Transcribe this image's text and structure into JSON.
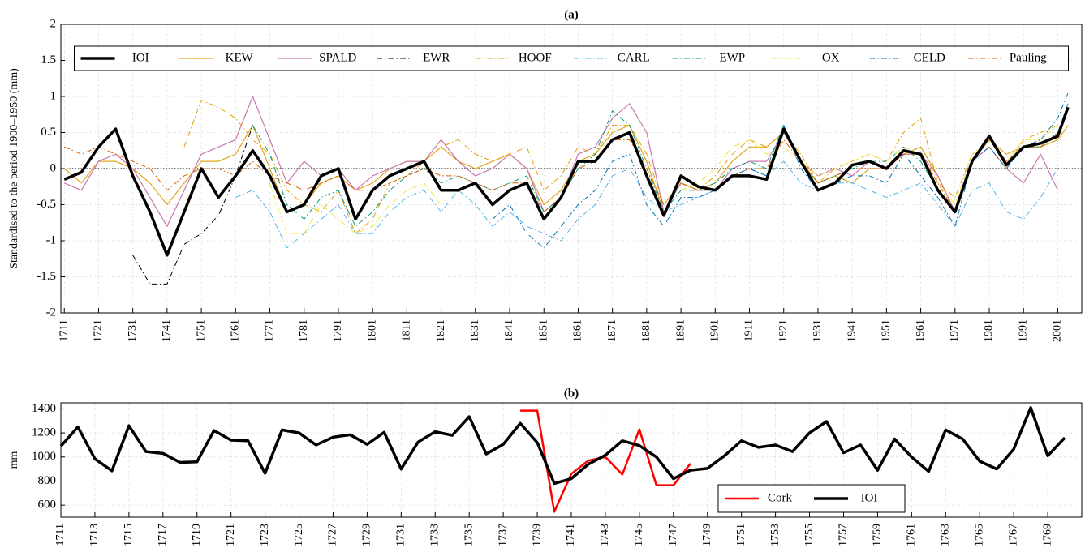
{
  "chart_data": [
    {
      "type": "line",
      "title": "(a)",
      "ylabel": "Standardised to the period 1900–1950 (mm)",
      "xlim": [
        1710,
        2008
      ],
      "ylim": [
        -2,
        2
      ],
      "xticks": [
        1711,
        1721,
        1731,
        1741,
        1751,
        1761,
        1771,
        1781,
        1791,
        1801,
        1811,
        1821,
        1831,
        1841,
        1851,
        1861,
        1871,
        1881,
        1891,
        1901,
        1911,
        1921,
        1931,
        1941,
        1951,
        1961,
        1971,
        1981,
        1991,
        2001
      ],
      "yticks": [
        -2,
        -1.5,
        -1,
        -0.5,
        0,
        0.5,
        1,
        1.5,
        2
      ],
      "grid": true,
      "reference_line": 0,
      "legend": "upper center",
      "x": [
        1711,
        1716,
        1721,
        1726,
        1731,
        1736,
        1741,
        1746,
        1751,
        1756,
        1761,
        1766,
        1771,
        1776,
        1781,
        1786,
        1791,
        1796,
        1801,
        1806,
        1811,
        1816,
        1821,
        1826,
        1831,
        1836,
        1841,
        1846,
        1851,
        1856,
        1861,
        1866,
        1871,
        1876,
        1881,
        1886,
        1891,
        1896,
        1901,
        1906,
        1911,
        1916,
        1921,
        1926,
        1931,
        1936,
        1941,
        1946,
        1951,
        1956,
        1961,
        1966,
        1971,
        1976,
        1981,
        1986,
        1991,
        1996,
        2001,
        2004
      ],
      "series": [
        {
          "name": "IOI",
          "color": "#000000",
          "dash": "-",
          "linewidth": 3.5,
          "values": [
            -0.15,
            -0.05,
            0.3,
            0.55,
            -0.1,
            -0.6,
            -1.2,
            -0.6,
            0.0,
            -0.4,
            -0.1,
            0.25,
            -0.1,
            -0.6,
            -0.5,
            -0.1,
            0.0,
            -0.7,
            -0.3,
            -0.1,
            0.0,
            0.1,
            -0.3,
            -0.3,
            -0.2,
            -0.5,
            -0.3,
            -0.2,
            -0.7,
            -0.4,
            0.1,
            0.1,
            0.4,
            0.5,
            -0.1,
            -0.65,
            -0.1,
            -0.25,
            -0.3,
            -0.1,
            -0.1,
            -0.15,
            0.55,
            0.1,
            -0.3,
            -0.2,
            0.05,
            0.1,
            0.0,
            0.25,
            0.2,
            -0.3,
            -0.6,
            0.1,
            0.45,
            0.05,
            0.3,
            0.35,
            0.45,
            0.85
          ]
        },
        {
          "name": "KEW",
          "color": "#e3a51c",
          "dash": "-",
          "linewidth": 1.2,
          "values": [
            0,
            -0.2,
            0.1,
            0.1,
            0,
            -0.2,
            -0.5,
            -0.2,
            0.1,
            0.1,
            0.2,
            0.6,
            0.0,
            -0.6,
            -0.5,
            -0.2,
            -0.1,
            -0.3,
            -0.2,
            0.0,
            0.1,
            0.1,
            0.3,
            0.1,
            0.0,
            0.1,
            0.2,
            0.0,
            -0.5,
            -0.3,
            0.1,
            0.2,
            0.5,
            0.6,
            0.1,
            -0.6,
            -0.2,
            -0.3,
            -0.2,
            0.1,
            0.3,
            0.3,
            0.5,
            0.1,
            -0.2,
            -0.1,
            -0.2,
            0.0,
            0.0,
            0.2,
            0.3,
            -0.1,
            -0.6,
            0.1,
            0.4,
            0.2,
            0.3,
            0.3,
            0.4,
            0.6
          ]
        },
        {
          "name": "SPALD",
          "color": "#c978b0",
          "dash": "-",
          "linewidth": 1.2,
          "values": [
            -0.2,
            -0.3,
            0.1,
            0.2,
            0.0,
            -0.4,
            -0.8,
            -0.3,
            0.2,
            0.3,
            0.4,
            1.0,
            0.4,
            -0.2,
            0.1,
            -0.1,
            0.0,
            -0.3,
            -0.1,
            0.0,
            0.1,
            0.1,
            0.4,
            0.1,
            -0.1,
            0.0,
            0.2,
            0.0,
            -0.6,
            -0.4,
            0.2,
            0.3,
            0.7,
            0.9,
            0.5,
            -0.6,
            -0.2,
            -0.3,
            -0.3,
            0.0,
            0.1,
            0.1,
            0.5,
            0.1,
            -0.1,
            0.0,
            -0.1,
            0.1,
            0.0,
            0.2,
            0.2,
            -0.1,
            -0.6,
            0.1,
            0.3,
            0.0,
            -0.2,
            0.2,
            -0.3,
            null
          ]
        },
        {
          "name": "EWR",
          "color": "#000000",
          "dash": "-.",
          "linewidth": 1,
          "values": [
            null,
            null,
            null,
            null,
            -1.2,
            -1.6,
            -1.6,
            -1.05,
            -0.9,
            -0.65,
            -0.1,
            0.6,
            null,
            null,
            null,
            null,
            null,
            null,
            null,
            null,
            null,
            null,
            null,
            null,
            null,
            null,
            null,
            null,
            null,
            null,
            null,
            null,
            null,
            null,
            null,
            null,
            null,
            null,
            null,
            null,
            null,
            null,
            null,
            null,
            null,
            null,
            null,
            null,
            null,
            null,
            null,
            null,
            null,
            null,
            null,
            null,
            null,
            null,
            null,
            null
          ]
        },
        {
          "name": "HOOF",
          "color": "#e69f00",
          "dash": "-.",
          "linewidth": 1,
          "values": [
            null,
            null,
            null,
            null,
            null,
            null,
            null,
            0.3,
            0.95,
            0.85,
            0.7,
            0.4,
            0.2,
            -0.3,
            -0.5,
            -0.6,
            -0.3,
            -0.9,
            -0.7,
            -0.2,
            -0.1,
            0.1,
            0.3,
            0.4,
            0.2,
            0.1,
            0.2,
            0.3,
            -0.3,
            -0.1,
            0.3,
            0.2,
            0.6,
            0.6,
            0.2,
            -0.5,
            -0.2,
            -0.3,
            -0.1,
            0.2,
            0.4,
            0.3,
            0.5,
            0.2,
            -0.2,
            0.0,
            0.1,
            0.2,
            0.1,
            0.5,
            0.7,
            -0.2,
            -0.4,
            0.2,
            0.3,
            0.0,
            0.4,
            0.5,
            0.6,
            null
          ]
        },
        {
          "name": "CARL",
          "color": "#56b4e9",
          "dash": "-.",
          "linewidth": 1,
          "values": [
            null,
            null,
            null,
            null,
            null,
            null,
            null,
            null,
            null,
            null,
            -0.4,
            -0.3,
            -0.6,
            -1.1,
            -0.9,
            -0.7,
            -0.5,
            -0.9,
            -0.9,
            -0.6,
            -0.4,
            -0.3,
            -0.6,
            -0.3,
            -0.5,
            -0.8,
            -0.6,
            -0.8,
            -0.9,
            -1.0,
            -0.7,
            -0.5,
            -0.1,
            0.0,
            -0.4,
            -0.6,
            -0.5,
            -0.4,
            -0.3,
            -0.1,
            0.0,
            -0.1,
            0.1,
            -0.2,
            -0.3,
            -0.2,
            -0.2,
            -0.3,
            -0.4,
            -0.3,
            -0.2,
            -0.5,
            -0.8,
            -0.3,
            -0.2,
            -0.6,
            -0.7,
            -0.4,
            0.0,
            null
          ]
        },
        {
          "name": "EWP",
          "color": "#009e73",
          "dash": "-.",
          "linewidth": 1,
          "values": [
            null,
            null,
            null,
            null,
            null,
            null,
            null,
            null,
            null,
            null,
            null,
            0.6,
            0.2,
            -0.5,
            -0.7,
            -0.4,
            -0.3,
            -0.8,
            -0.6,
            -0.3,
            -0.1,
            0.0,
            -0.2,
            -0.1,
            -0.2,
            -0.3,
            -0.2,
            -0.1,
            -0.6,
            -0.4,
            0.0,
            0.2,
            0.8,
            0.6,
            0.0,
            -0.6,
            -0.3,
            -0.3,
            -0.2,
            0.0,
            0.1,
            0.0,
            0.6,
            0.1,
            -0.2,
            -0.1,
            0.0,
            0.1,
            0.1,
            0.3,
            0.1,
            -0.3,
            -0.6,
            0.1,
            0.4,
            0.1,
            0.3,
            0.3,
            0.5,
            0.9
          ]
        },
        {
          "name": "OX",
          "color": "#f0e442",
          "dash": "-.",
          "linewidth": 1,
          "values": [
            null,
            null,
            null,
            null,
            null,
            null,
            null,
            null,
            null,
            null,
            null,
            null,
            -0.2,
            -0.9,
            -0.9,
            -0.5,
            -0.7,
            -0.9,
            -0.8,
            -0.5,
            -0.3,
            -0.2,
            -0.5,
            null,
            null,
            null,
            null,
            null,
            null,
            null,
            null,
            null,
            null,
            null,
            null,
            null,
            -0.3,
            -0.2,
            0.0,
            0.3,
            0.4,
            0.2,
            0.3,
            0.1,
            -0.1,
            0.0,
            0.1,
            0.2,
            0.1,
            0.3,
            0.2,
            -0.2,
            -0.5,
            0.2,
            0.4,
            0.1,
            0.4,
            0.4,
            0.6,
            null
          ]
        },
        {
          "name": "CELD",
          "color": "#0072b2",
          "dash": "-.",
          "linewidth": 1,
          "values": [
            null,
            null,
            null,
            null,
            null,
            null,
            null,
            null,
            null,
            null,
            null,
            null,
            null,
            null,
            null,
            null,
            null,
            null,
            null,
            null,
            null,
            null,
            null,
            null,
            null,
            -0.7,
            -0.5,
            -0.9,
            -1.1,
            -0.8,
            -0.5,
            -0.3,
            0.1,
            0.2,
            -0.5,
            -0.8,
            -0.4,
            -0.4,
            -0.3,
            -0.1,
            0.0,
            -0.1,
            0.6,
            0.0,
            -0.3,
            -0.2,
            -0.1,
            -0.1,
            -0.2,
            0.2,
            -0.1,
            -0.4,
            -0.8,
            0.1,
            0.3,
            0.0,
            0.3,
            0.4,
            0.7,
            1.05
          ]
        },
        {
          "name": "Pauling",
          "color": "#d55e00",
          "dash": "-.",
          "linewidth": 1,
          "values": [
            0.3,
            0.2,
            0.3,
            0.2,
            0.1,
            0.0,
            -0.3,
            -0.1,
            0.0,
            0.0,
            -0.1,
            0.1,
            -0.1,
            -0.2,
            -0.3,
            -0.2,
            -0.1,
            -0.3,
            -0.3,
            -0.2,
            -0.1,
            0.0,
            -0.1,
            -0.1,
            -0.2,
            -0.3,
            -0.2,
            -0.2,
            -0.6,
            -0.4,
            0.0,
            0.1,
            0.4,
            0.4,
            0.0,
            -0.5,
            -0.2,
            -0.3,
            -0.3,
            -0.1,
            0.0,
            0.0,
            0.4,
            0.1,
            -0.2,
            -0.1,
            0.0,
            0.0,
            0.0,
            0.2,
            0.2,
            -0.2,
            -0.6,
            0.1,
            0.4,
            0.1,
            0.3,
            0.3,
            0.5,
            null
          ]
        }
      ]
    },
    {
      "type": "line",
      "title": "(b)",
      "ylabel": "mm",
      "xlim": [
        1711,
        1771
      ],
      "ylim": [
        500,
        1450
      ],
      "xticks": [
        1711,
        1713,
        1715,
        1717,
        1719,
        1721,
        1723,
        1725,
        1727,
        1729,
        1731,
        1733,
        1735,
        1737,
        1739,
        1741,
        1743,
        1745,
        1747,
        1749,
        1751,
        1753,
        1755,
        1757,
        1759,
        1761,
        1763,
        1765,
        1767,
        1769
      ],
      "yticks": [
        600,
        800,
        1000,
        1200,
        1400
      ],
      "grid": true,
      "legend": "lower right",
      "x": [
        1711,
        1712,
        1713,
        1714,
        1715,
        1716,
        1717,
        1718,
        1719,
        1720,
        1721,
        1722,
        1723,
        1724,
        1725,
        1726,
        1727,
        1728,
        1729,
        1730,
        1731,
        1732,
        1733,
        1734,
        1735,
        1736,
        1737,
        1738,
        1739,
        1740,
        1741,
        1742,
        1743,
        1744,
        1745,
        1746,
        1747,
        1748,
        1749,
        1750,
        1751,
        1752,
        1753,
        1754,
        1755,
        1756,
        1757,
        1758,
        1759,
        1760,
        1761,
        1762,
        1763,
        1764,
        1765,
        1766,
        1767,
        1768,
        1769,
        1770
      ],
      "series": [
        {
          "name": "Cork",
          "color": "#ff0000",
          "dash": "-",
          "linewidth": 2.5,
          "values": [
            null,
            null,
            null,
            null,
            null,
            null,
            null,
            null,
            null,
            null,
            null,
            null,
            null,
            null,
            null,
            null,
            null,
            null,
            null,
            null,
            null,
            null,
            null,
            null,
            null,
            null,
            null,
            1385,
            1385,
            545,
            860,
            970,
            1000,
            855,
            1230,
            765,
            765,
            945,
            null,
            null,
            null,
            null,
            null,
            null,
            null,
            null,
            null,
            null,
            null,
            null,
            null,
            null,
            null,
            null,
            null,
            null,
            null,
            null,
            null,
            null
          ]
        },
        {
          "name": "IOI",
          "color": "#000000",
          "dash": "-",
          "linewidth": 3.5,
          "values": [
            1090,
            1250,
            985,
            885,
            1260,
            1045,
            1030,
            955,
            960,
            1220,
            1140,
            1135,
            865,
            1225,
            1200,
            1100,
            1165,
            1185,
            1105,
            1205,
            900,
            1125,
            1210,
            1180,
            1335,
            1025,
            1105,
            1280,
            1120,
            780,
            820,
            940,
            1015,
            1135,
            1095,
            1000,
            820,
            890,
            905,
            1010,
            1135,
            1080,
            1100,
            1045,
            1200,
            1295,
            1035,
            1100,
            890,
            1150,
            1000,
            880,
            1225,
            1150,
            965,
            900,
            1065,
            1410,
            1010,
            1160
          ]
        }
      ]
    }
  ]
}
